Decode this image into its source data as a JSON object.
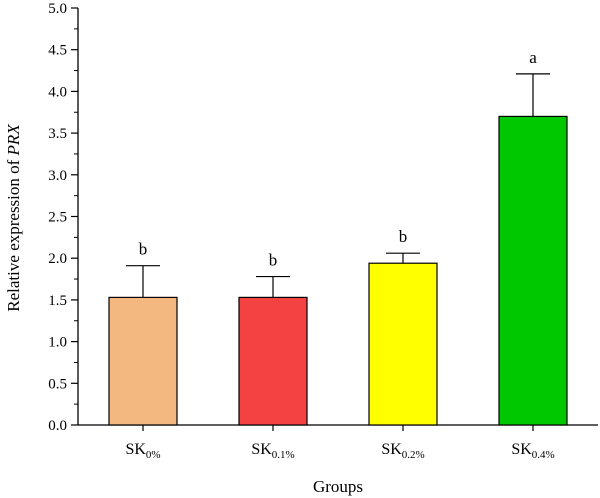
{
  "chart_data": {
    "type": "bar",
    "title": "",
    "xlabel": "Groups",
    "ylabel": {
      "prefix": "Relative expression of ",
      "gene": "PRX"
    },
    "ylim": [
      0,
      5.0
    ],
    "yticks": [
      "0.0",
      "0.5",
      "1.0",
      "1.5",
      "2.0",
      "2.5",
      "3.0",
      "3.5",
      "4.0",
      "4.5",
      "5.0"
    ],
    "grid": false,
    "categories": [
      {
        "base": "SK",
        "sub": "0%"
      },
      {
        "base": "SK",
        "sub": "0.1%"
      },
      {
        "base": "SK",
        "sub": "0.2%"
      },
      {
        "base": "SK",
        "sub": "0.4%"
      }
    ],
    "series": [
      {
        "values": [
          1.53,
          1.53,
          1.94,
          3.7
        ],
        "errors": [
          0.38,
          0.25,
          0.12,
          0.51
        ],
        "colors": [
          "#F2B880",
          "#F44242",
          "#FFFF00",
          "#00C800"
        ],
        "significance": [
          "b",
          "b",
          "b",
          "a"
        ]
      }
    ]
  }
}
